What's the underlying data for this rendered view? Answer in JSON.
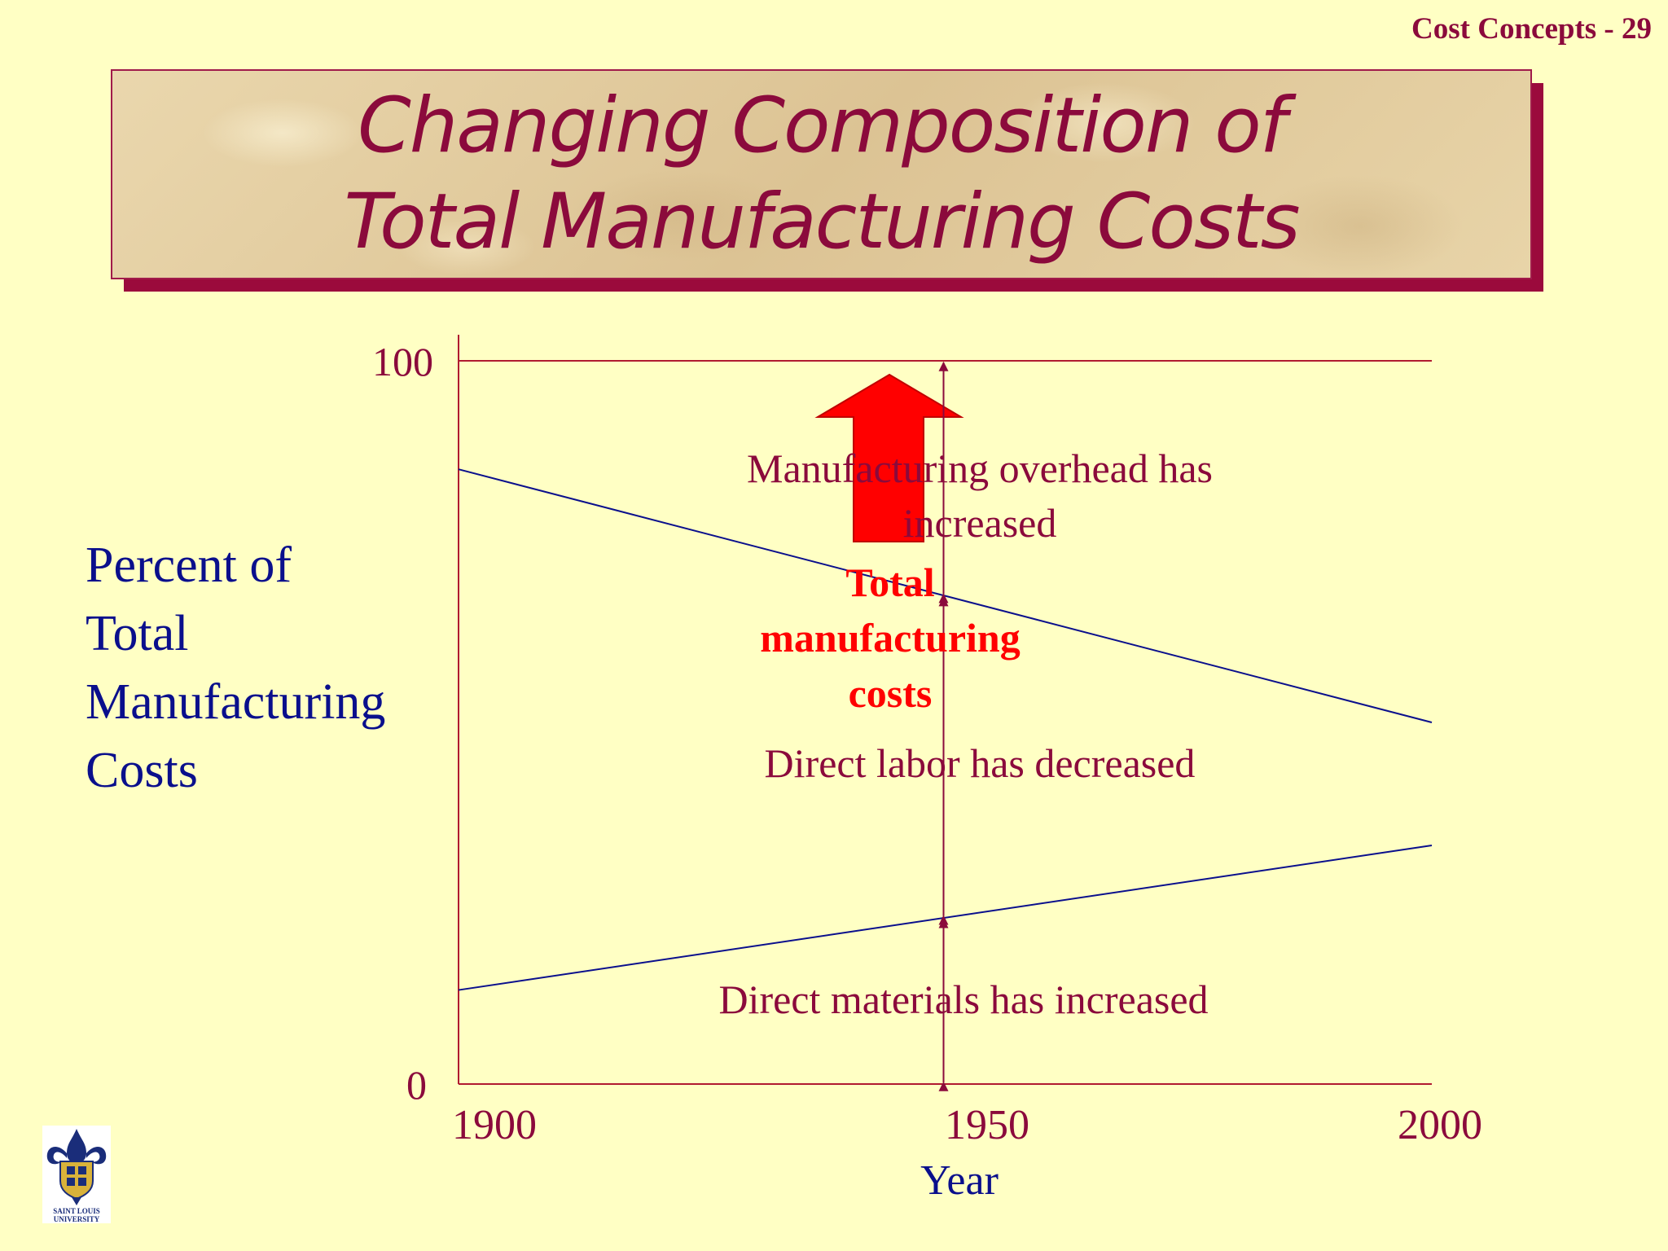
{
  "header": {
    "slide_ref": "Cost Concepts  -  29"
  },
  "title": {
    "line1": "Changing Composition of",
    "line2": "Total Manufacturing Costs"
  },
  "colors": {
    "background": "#ffffc4",
    "accent": "#8b0a3c",
    "axis": "#b01a30",
    "series_line": "#0a0f8c",
    "highlight": "#ff0000"
  },
  "chart_data": {
    "type": "line",
    "title": "Changing Composition of Total Manufacturing Costs",
    "xlabel": "Year",
    "ylabel": "Percent of Total Manufacturing Costs",
    "xlim": [
      1900,
      2000
    ],
    "ylim": [
      0,
      100
    ],
    "x_ticks": [
      "1900",
      "1950",
      "2000"
    ],
    "y_ticks": [
      "0",
      "100"
    ],
    "y_label_lines": [
      "Percent of",
      "Total",
      "Manufacturing",
      "Costs"
    ],
    "grid": false,
    "series": [
      {
        "x": [
          1900,
          2000
        ],
        "y": [
          13,
          33
        ]
      },
      {
        "x": [
          1900,
          2000
        ],
        "y": [
          85,
          50
        ]
      }
    ],
    "reference_lines": [
      {
        "y": 100
      }
    ],
    "annotations": {
      "overhead": [
        "Manufacturing overhead has",
        "increased"
      ],
      "labor": "Direct labor has decreased",
      "materials": "Direct materials has increased",
      "total": [
        "Total",
        "manufacturing",
        "costs"
      ]
    }
  },
  "logo": {
    "text_lines": [
      "SAINT LOUIS",
      "UNIVERSITY"
    ]
  }
}
